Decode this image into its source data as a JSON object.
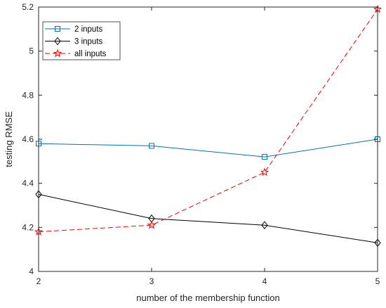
{
  "chart_data": {
    "type": "line",
    "xlabel": "number of the membership function",
    "ylabel": "testing RMSE",
    "x": [
      2,
      3,
      4,
      5
    ],
    "xlim": [
      2,
      5
    ],
    "ylim": [
      4,
      5.2
    ],
    "xticks": [
      "2",
      "3",
      "4",
      "5"
    ],
    "yticks": [
      "4",
      "4.2",
      "4.4",
      "4.6",
      "4.8",
      "5",
      "5.2"
    ],
    "grid": false,
    "legend_position": "top-left",
    "series": [
      {
        "name": "2 inputs",
        "values": [
          4.58,
          4.57,
          4.52,
          4.6
        ],
        "color": "#0072BD",
        "marker": "square",
        "line_style": "solid"
      },
      {
        "name": "3 inputs",
        "values": [
          4.35,
          4.24,
          4.21,
          4.13
        ],
        "color": "#000000",
        "marker": "diamond",
        "line_style": "solid"
      },
      {
        "name": "all inputs",
        "values": [
          4.18,
          4.21,
          4.45,
          5.19
        ],
        "color": "#FF0000",
        "marker": "star",
        "line_style": "dashed"
      }
    ]
  }
}
